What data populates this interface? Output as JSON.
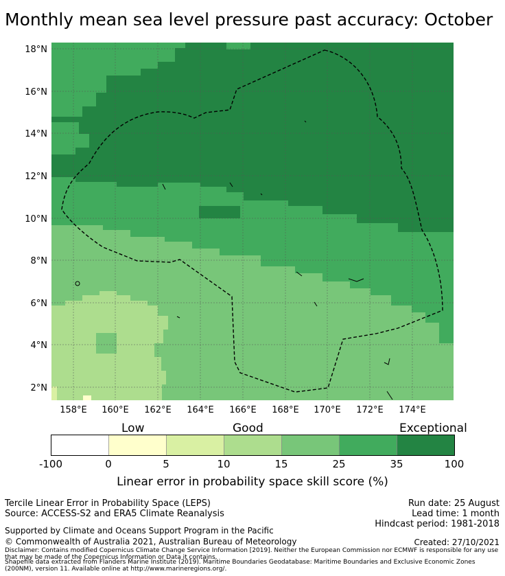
{
  "title": "Monthly mean sea level pressure past accuracy: October",
  "map": {
    "lat_ticks": [
      "18°N",
      "16°N",
      "14°N",
      "12°N",
      "10°N",
      "8°N",
      "6°N",
      "4°N",
      "2°N"
    ],
    "lon_ticks": [
      "158°E",
      "160°E",
      "162°E",
      "164°E",
      "166°E",
      "168°E",
      "170°E",
      "172°E",
      "174°E"
    ],
    "lat_range": [
      1.4,
      18.3
    ],
    "lon_range": [
      157.0,
      176.0
    ]
  },
  "colorbar": {
    "category_labels": [
      "Low",
      "Good",
      "Exceptional"
    ],
    "tick_labels": [
      "-100",
      "0",
      "5",
      "10",
      "15",
      "25",
      "35",
      "100"
    ],
    "colors": [
      "#ffffff",
      "#ffffcc",
      "#d9f0a3",
      "#addd8e",
      "#78c679",
      "#41ab5d",
      "#238443"
    ],
    "label": "Linear error in probability space skill score (%)"
  },
  "footer": {
    "method": "Tercile Linear Error in Probability Space (LEPS)",
    "source": "Source: ACCESS-S2 and ERA5 Climate Reanalysis",
    "run_date": "Run date: 25 August",
    "lead_time": "Lead time: 1 month",
    "hindcast": "Hindcast period: 1981-2018",
    "support": "Supported by Climate and Oceans Support Program in the Pacific",
    "copyright": "© Commonwealth of Australia 2021, Australian Bureau of Meteorology",
    "created": "Created: 27/10/2021",
    "disclaimer": "Disclaimer: Contains modified Copernicus Climate Change Service Information [2019]. Neither the European Commission nor ECMWF is responsible for any use that may be made of the Copernicus Information or Data it contains.",
    "shapefile": "Shapefile data extracted from Flanders Marine Institute (2019). Maritime Boundaries Geodatabase: Maritime Boundaries and Exclusive Economic Zones (200NM), version 11. Available online at http://www.marineregions.org/."
  }
}
